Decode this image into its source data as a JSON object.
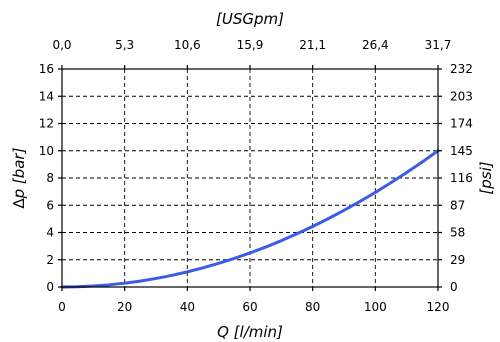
{
  "chart_data": {
    "type": "line",
    "title": "",
    "xlabel": "Q [l/min]",
    "ylabel": "∆p [bar]",
    "x2label": "[USGpm]",
    "y2label": "[psi]",
    "xlim": [
      0,
      120
    ],
    "ylim": [
      0,
      16
    ],
    "grid": true,
    "x_ticks": [
      0,
      20,
      40,
      60,
      80,
      100,
      120
    ],
    "x_tick_labels": [
      "0",
      "20",
      "40",
      "60",
      "80",
      "100",
      "120"
    ],
    "y_ticks": [
      0,
      2,
      4,
      6,
      8,
      10,
      12,
      14,
      16
    ],
    "y_tick_labels": [
      "0",
      "2",
      "4",
      "6",
      "8",
      "10",
      "12",
      "14",
      "16"
    ],
    "x2_ticks": [
      0,
      20,
      40,
      60,
      80,
      100,
      120
    ],
    "x2_tick_labels": [
      "0,0",
      "5,3",
      "10,6",
      "15,9",
      "21,1",
      "26,4",
      "31,7"
    ],
    "y2_ticks": [
      0,
      2,
      4,
      6,
      8,
      10,
      12,
      14,
      16
    ],
    "y2_tick_labels": [
      "0",
      "29",
      "58",
      "87",
      "116",
      "145",
      "174",
      "203",
      "232"
    ],
    "series": [
      {
        "color": "#3a5ce8",
        "x": [
          0,
          5,
          10,
          15,
          20,
          25,
          30,
          35,
          40,
          45,
          50,
          55,
          60,
          65,
          70,
          75,
          80,
          85,
          90,
          95,
          100,
          105,
          110,
          115,
          120
        ],
        "y": [
          0,
          0.02,
          0.07,
          0.16,
          0.28,
          0.43,
          0.63,
          0.85,
          1.11,
          1.41,
          1.74,
          2.1,
          2.5,
          2.93,
          3.4,
          3.91,
          4.44,
          5.02,
          5.63,
          6.27,
          6.94,
          7.66,
          8.4,
          9.18,
          10.0
        ]
      }
    ]
  }
}
